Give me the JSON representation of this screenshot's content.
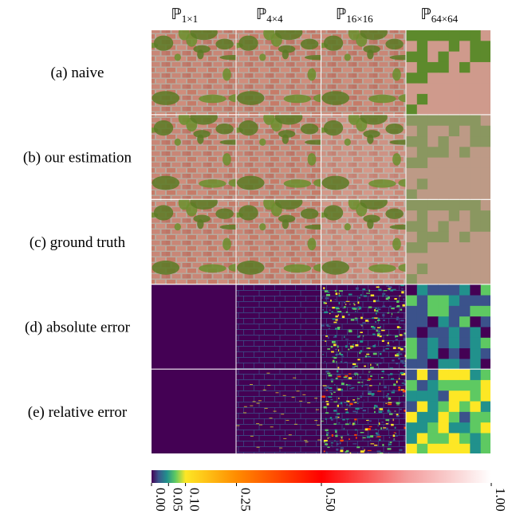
{
  "figure": {
    "columns": [
      {
        "symbol": "ℙ",
        "subscript": "1×1"
      },
      {
        "symbol": "ℙ",
        "subscript": "4×4"
      },
      {
        "symbol": "ℙ",
        "subscript": "16×16"
      },
      {
        "symbol": "ℙ",
        "subscript": "64×64"
      }
    ],
    "rows": [
      "(a) naive",
      "(b) our estimation",
      "(c) ground truth",
      "(d) absolute error",
      "(e) relative error"
    ],
    "colorbar": {
      "lim": [
        0,
        1
      ],
      "ticks": [
        {
          "value": 0,
          "label": "0.00"
        },
        {
          "value": 0.05,
          "label": "0.05"
        },
        {
          "value": 0.1,
          "label": "0.10"
        },
        {
          "value": 0.25,
          "label": "0.25"
        },
        {
          "value": 0.5,
          "label": "0.50"
        },
        {
          "value": 1,
          "label": "1.00"
        }
      ]
    }
  }
}
